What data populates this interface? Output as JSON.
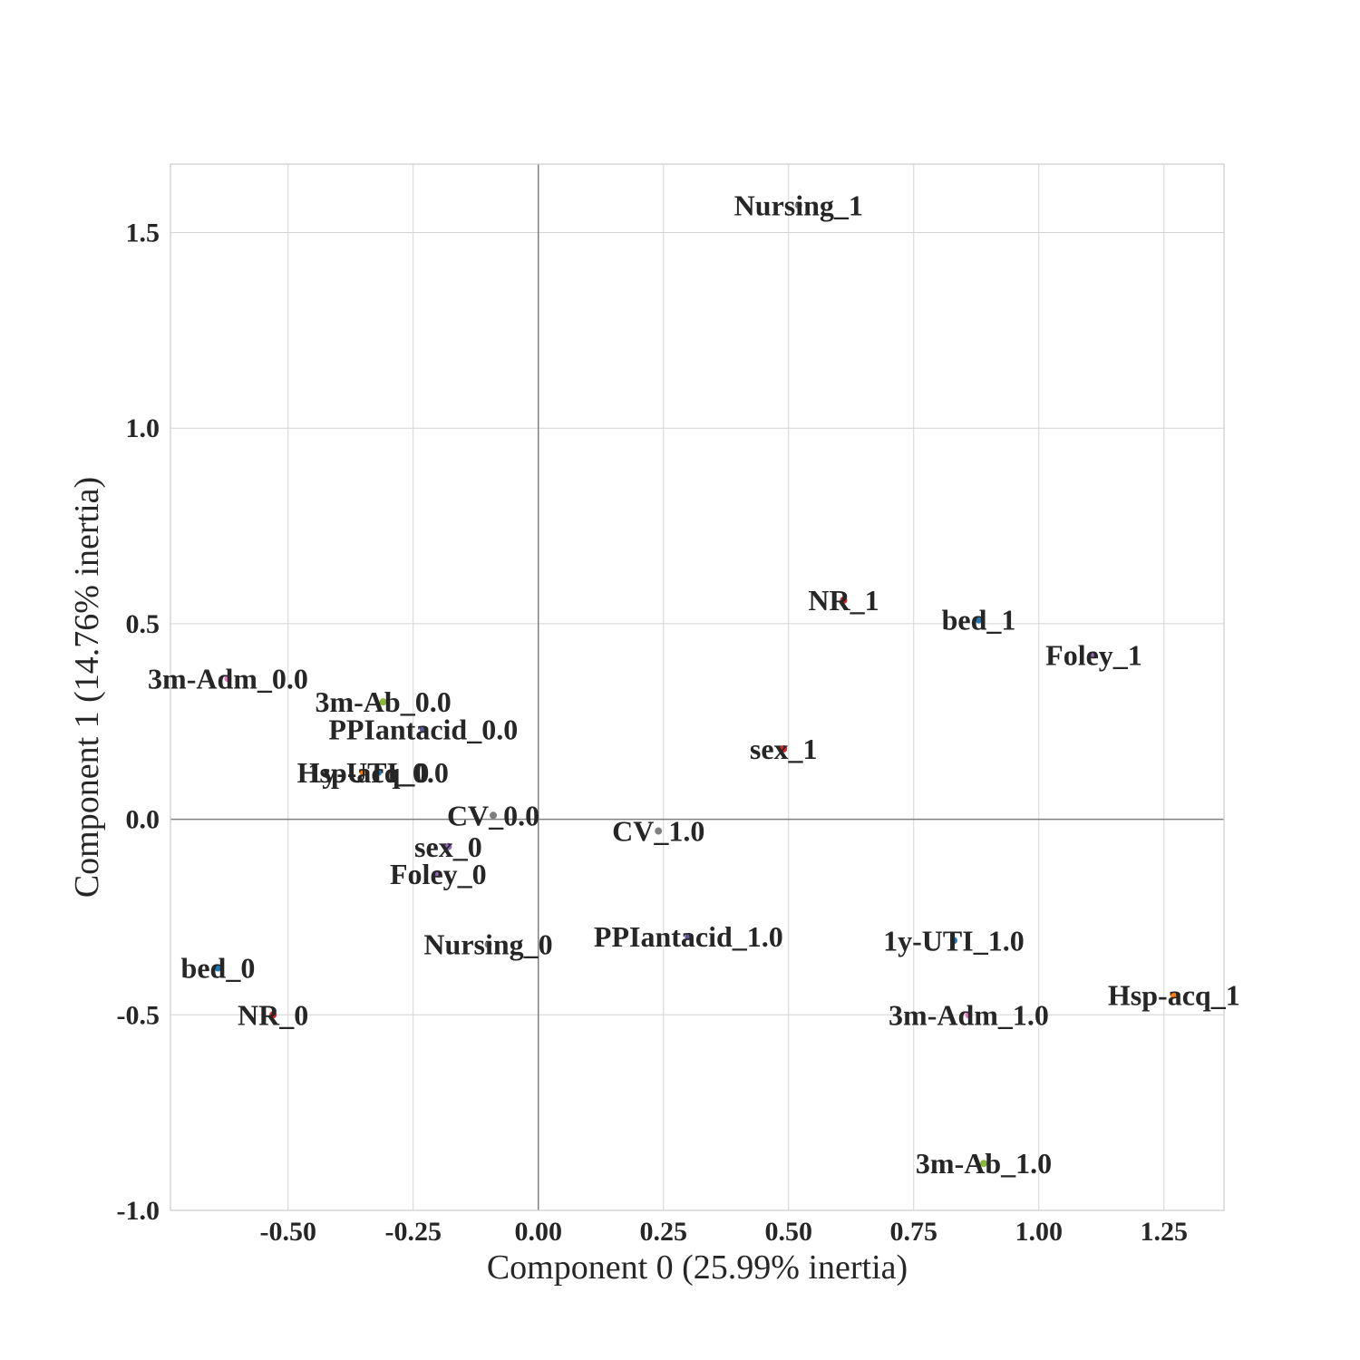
{
  "chart_data": {
    "type": "scatter",
    "xlabel": "Component 0 (25.99% inertia)",
    "ylabel": "Component 1 (14.76% inertia)",
    "xlim": [
      -0.735,
      1.37
    ],
    "ylim": [
      -1.0,
      1.675
    ],
    "xticks": [
      -0.5,
      -0.25,
      0.0,
      0.25,
      0.5,
      0.75,
      1.0,
      1.25
    ],
    "xtick_labels": [
      "-0.50",
      "-0.25",
      "0.00",
      "0.25",
      "0.50",
      "0.75",
      "1.00",
      "1.25"
    ],
    "yticks": [
      -1.0,
      -0.5,
      0.0,
      0.5,
      1.0,
      1.5
    ],
    "ytick_labels": [
      "-1.0",
      "-0.5",
      "0.0",
      "0.5",
      "1.0",
      "1.5"
    ],
    "grid": true,
    "points": [
      {
        "label": "Nursing_1",
        "x": 0.52,
        "y": 1.57,
        "color": "#7f7f7f"
      },
      {
        "label": "NR_1",
        "x": 0.61,
        "y": 0.56,
        "color": "#d62728"
      },
      {
        "label": "bed_1",
        "x": 0.88,
        "y": 0.51,
        "color": "#1f77b4"
      },
      {
        "label": "Foley_1",
        "x": 1.11,
        "y": 0.42,
        "color": "#9467bd"
      },
      {
        "label": "sex_1",
        "x": 0.49,
        "y": 0.18,
        "color": "#d62728"
      },
      {
        "label": "3m-Adm_0.0",
        "x": -0.62,
        "y": 0.36,
        "color": "#e377c2"
      },
      {
        "label": "3m-Ab_0.0",
        "x": -0.31,
        "y": 0.3,
        "color": "#8ab83a"
      },
      {
        "label": "PPIantacid_0.0",
        "x": -0.23,
        "y": 0.23,
        "color": "#5a5a9a"
      },
      {
        "label": "1y-UTI_0.0",
        "x": -0.32,
        "y": 0.12,
        "color": "#1f77b4"
      },
      {
        "label": "Hsp-acq_0",
        "x": -0.35,
        "y": 0.12,
        "color": "#ff7f0e"
      },
      {
        "label": "CV_0.0",
        "x": -0.09,
        "y": 0.01,
        "color": "#7f7f7f"
      },
      {
        "label": "CV_1.0",
        "x": 0.24,
        "y": -0.03,
        "color": "#7f7f7f"
      },
      {
        "label": "sex_0",
        "x": -0.18,
        "y": -0.07,
        "color": "#9467bd"
      },
      {
        "label": "Foley_0",
        "x": -0.2,
        "y": -0.14,
        "color": "#9467bd"
      },
      {
        "label": "Nursing_0",
        "x": -0.1,
        "y": -0.32,
        "color": "#7f7f7f"
      },
      {
        "label": "PPIantacid_1.0",
        "x": 0.3,
        "y": -0.3,
        "color": "#5a5a9a"
      },
      {
        "label": "1y-UTI_1.0",
        "x": 0.83,
        "y": -0.31,
        "color": "#1f77b4"
      },
      {
        "label": "bed_0",
        "x": -0.64,
        "y": -0.38,
        "color": "#1f77b4"
      },
      {
        "label": "NR_0",
        "x": -0.53,
        "y": -0.5,
        "color": "#d62728"
      },
      {
        "label": "Hsp-acq_1",
        "x": 1.27,
        "y": -0.45,
        "color": "#ff7f0e"
      },
      {
        "label": "3m-Adm_1.0",
        "x": 0.86,
        "y": -0.5,
        "color": "#e377c2"
      },
      {
        "label": "3m-Ab_1.0",
        "x": 0.89,
        "y": -0.88,
        "color": "#8ab83a"
      }
    ]
  }
}
